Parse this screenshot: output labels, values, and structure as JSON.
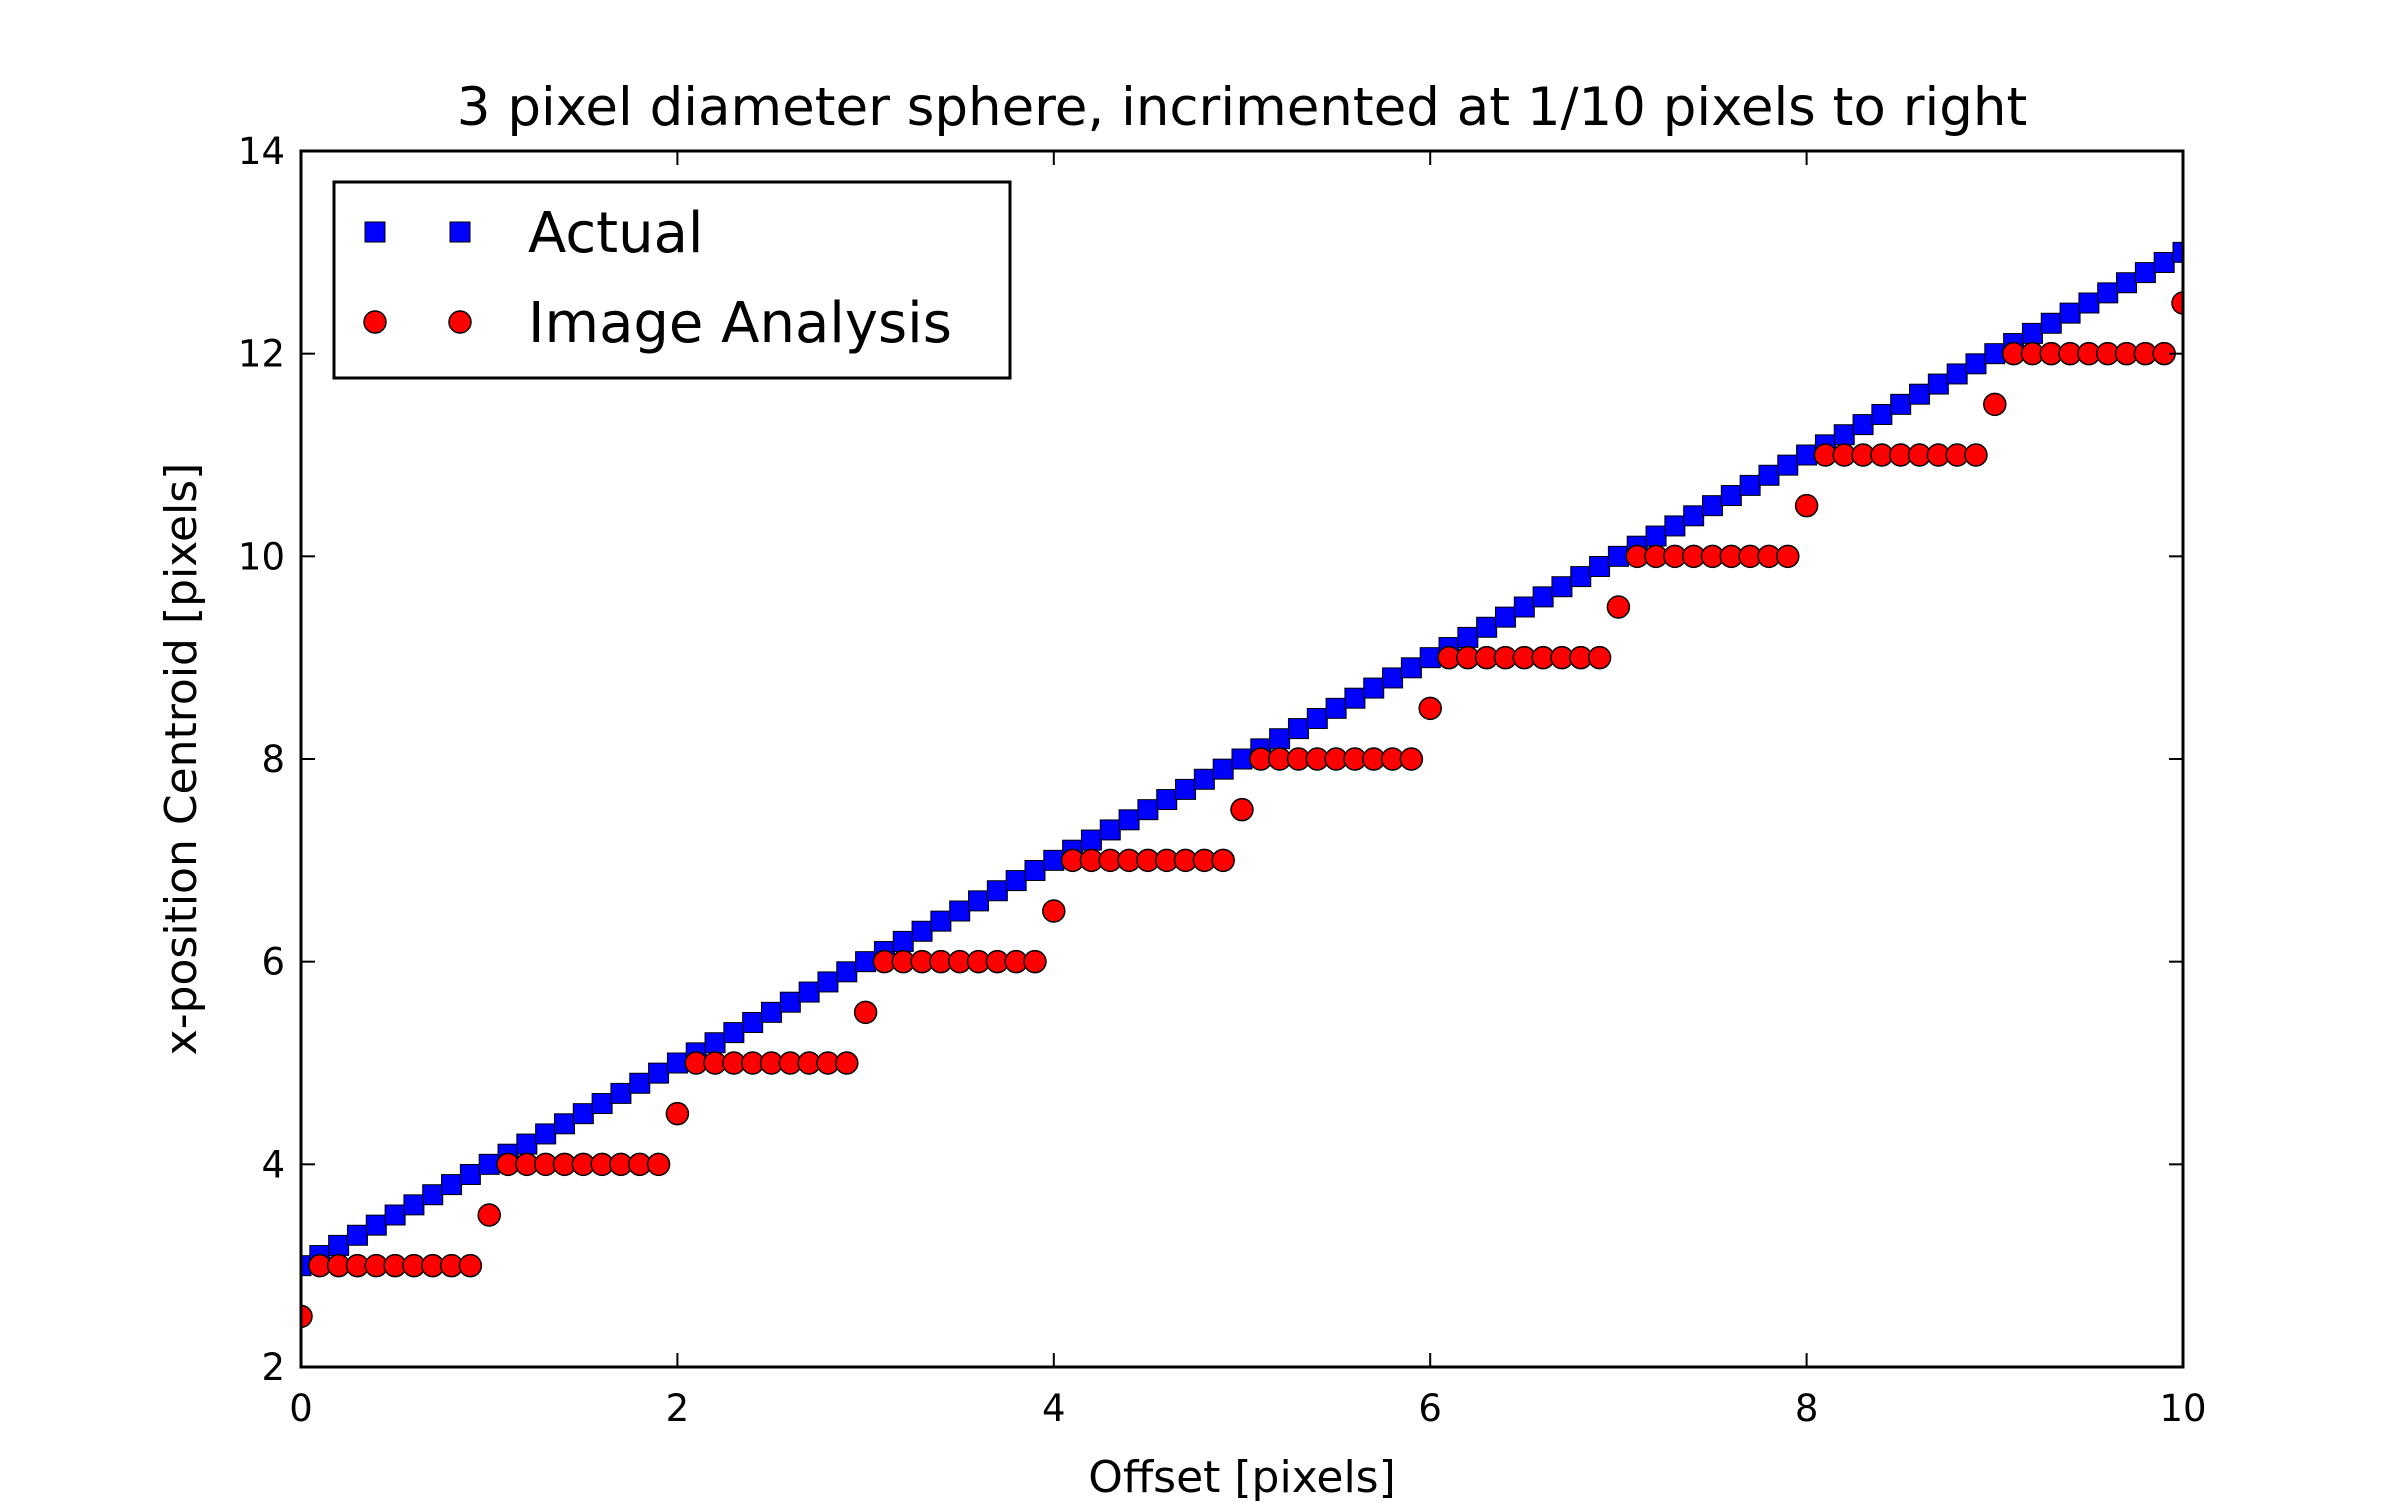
{
  "chart_data": {
    "type": "scatter",
    "title": "3 pixel diameter sphere, incrimented at 1/10 pixels to right",
    "xlabel": "Offset [pixels]",
    "ylabel": "x-position Centroid [pixels]",
    "xlim": [
      0,
      10
    ],
    "ylim": [
      2,
      14
    ],
    "xticks": [
      0,
      2,
      4,
      6,
      8,
      10
    ],
    "yticks": [
      2,
      4,
      6,
      8,
      10,
      12,
      14
    ],
    "xtick_labels": [
      "0",
      "2",
      "4",
      "6",
      "8",
      "10"
    ],
    "ytick_labels": [
      "2",
      "4",
      "6",
      "8",
      "10",
      "12",
      "14"
    ],
    "grid": false,
    "legend_position": "upper-left",
    "series": [
      {
        "name": "Actual",
        "marker": "square",
        "color": "#0000ff",
        "x": [
          0,
          0.1,
          0.2,
          0.3,
          0.4,
          0.5,
          0.6,
          0.7,
          0.8,
          0.9,
          1,
          1.1,
          1.2,
          1.3,
          1.4,
          1.5,
          1.6,
          1.7,
          1.8,
          1.9,
          2,
          2.1,
          2.2,
          2.3,
          2.4,
          2.5,
          2.6,
          2.7,
          2.8,
          2.9,
          3,
          3.1,
          3.2,
          3.3,
          3.4,
          3.5,
          3.6,
          3.7,
          3.8,
          3.9,
          4,
          4.1,
          4.2,
          4.3,
          4.4,
          4.5,
          4.6,
          4.7,
          4.8,
          4.9,
          5,
          5.1,
          5.2,
          5.3,
          5.4,
          5.5,
          5.6,
          5.7,
          5.8,
          5.9,
          6,
          6.1,
          6.2,
          6.3,
          6.4,
          6.5,
          6.6,
          6.7,
          6.8,
          6.9,
          7,
          7.1,
          7.2,
          7.3,
          7.4,
          7.5,
          7.6,
          7.7,
          7.8,
          7.9,
          8,
          8.1,
          8.2,
          8.3,
          8.4,
          8.5,
          8.6,
          8.7,
          8.8,
          8.9,
          9,
          9.1,
          9.2,
          9.3,
          9.4,
          9.5,
          9.6,
          9.7,
          9.8,
          9.9,
          10
        ],
        "y": [
          3,
          3.1,
          3.2,
          3.3,
          3.4,
          3.5,
          3.6,
          3.7,
          3.8,
          3.9,
          4,
          4.1,
          4.2,
          4.3,
          4.4,
          4.5,
          4.6,
          4.7,
          4.8,
          4.9,
          5,
          5.1,
          5.2,
          5.3,
          5.4,
          5.5,
          5.6,
          5.7,
          5.8,
          5.9,
          6,
          6.1,
          6.2,
          6.3,
          6.4,
          6.5,
          6.6,
          6.7,
          6.8,
          6.9,
          7,
          7.1,
          7.2,
          7.3,
          7.4,
          7.5,
          7.6,
          7.7,
          7.8,
          7.9,
          8,
          8.1,
          8.2,
          8.3,
          8.4,
          8.5,
          8.6,
          8.7,
          8.8,
          8.9,
          9,
          9.1,
          9.2,
          9.3,
          9.4,
          9.5,
          9.6,
          9.7,
          9.8,
          9.9,
          10,
          10.1,
          10.2,
          10.3,
          10.4,
          10.5,
          10.6,
          10.7,
          10.8,
          10.9,
          11,
          11.1,
          11.2,
          11.3,
          11.4,
          11.5,
          11.6,
          11.7,
          11.8,
          11.9,
          12,
          12.1,
          12.2,
          12.3,
          12.4,
          12.5,
          12.6,
          12.7,
          12.8,
          12.9,
          13
        ]
      },
      {
        "name": "Image Analysis",
        "marker": "circle",
        "color": "#ff0000",
        "x": [
          0,
          0.1,
          0.2,
          0.3,
          0.4,
          0.5,
          0.6,
          0.7,
          0.8,
          0.9,
          1,
          1.1,
          1.2,
          1.3,
          1.4,
          1.5,
          1.6,
          1.7,
          1.8,
          1.9,
          2,
          2.1,
          2.2,
          2.3,
          2.4,
          2.5,
          2.6,
          2.7,
          2.8,
          2.9,
          3,
          3.1,
          3.2,
          3.3,
          3.4,
          3.5,
          3.6,
          3.7,
          3.8,
          3.9,
          4,
          4.1,
          4.2,
          4.3,
          4.4,
          4.5,
          4.6,
          4.7,
          4.8,
          4.9,
          5,
          5.1,
          5.2,
          5.3,
          5.4,
          5.5,
          5.6,
          5.7,
          5.8,
          5.9,
          6,
          6.1,
          6.2,
          6.3,
          6.4,
          6.5,
          6.6,
          6.7,
          6.8,
          6.9,
          7,
          7.1,
          7.2,
          7.3,
          7.4,
          7.5,
          7.6,
          7.7,
          7.8,
          7.9,
          8,
          8.1,
          8.2,
          8.3,
          8.4,
          8.5,
          8.6,
          8.7,
          8.8,
          8.9,
          9,
          9.1,
          9.2,
          9.3,
          9.4,
          9.5,
          9.6,
          9.7,
          9.8,
          9.9,
          10
        ],
        "y": [
          2.5,
          3,
          3,
          3,
          3,
          3,
          3,
          3,
          3,
          3,
          3.5,
          4,
          4,
          4,
          4,
          4,
          4,
          4,
          4,
          4,
          4.5,
          5,
          5,
          5,
          5,
          5,
          5,
          5,
          5,
          5,
          5.5,
          6,
          6,
          6,
          6,
          6,
          6,
          6,
          6,
          6,
          6.5,
          7,
          7,
          7,
          7,
          7,
          7,
          7,
          7,
          7,
          7.5,
          8,
          8,
          8,
          8,
          8,
          8,
          8,
          8,
          8,
          8.5,
          9,
          9,
          9,
          9,
          9,
          9,
          9,
          9,
          9,
          9.5,
          10,
          10,
          10,
          10,
          10,
          10,
          10,
          10,
          10,
          10.5,
          11,
          11,
          11,
          11,
          11,
          11,
          11,
          11,
          11,
          11.5,
          12,
          12,
          12,
          12,
          12,
          12,
          12,
          12,
          12,
          12.5
        ]
      }
    ]
  }
}
